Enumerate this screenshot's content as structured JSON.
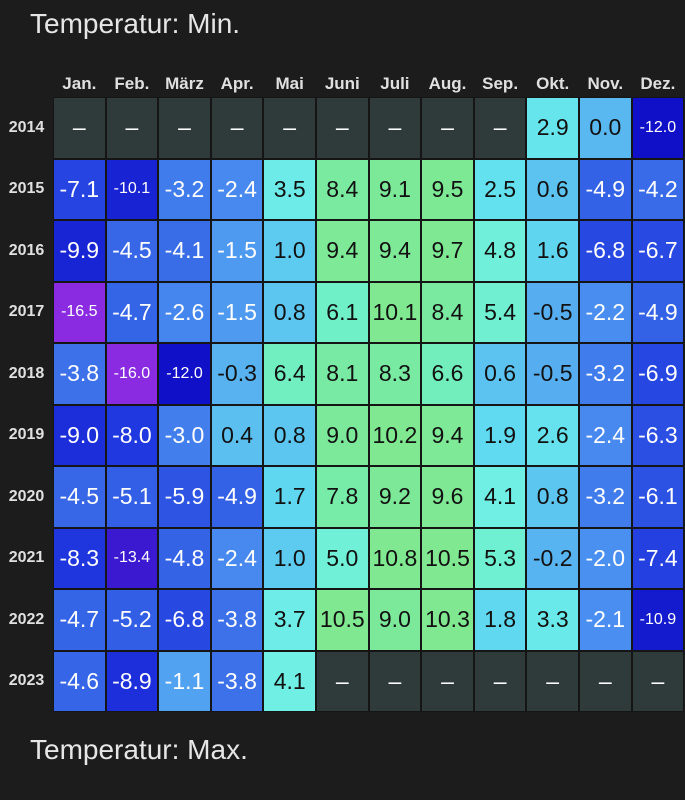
{
  "header": {
    "title": "Temperatur: Min."
  },
  "table": {
    "columns": [
      "Jan.",
      "Feb.",
      "März",
      "Apr.",
      "Mai",
      "Juni",
      "Juli",
      "Aug.",
      "Sep.",
      "Okt.",
      "Nov.",
      "Dez."
    ],
    "rows": [
      {
        "year": "2014",
        "cells": [
          "–",
          "–",
          "–",
          "–",
          "–",
          "–",
          "–",
          "–",
          "–",
          "2.9",
          "0.0",
          "-12.0"
        ]
      },
      {
        "year": "2015",
        "cells": [
          "-7.1",
          "-10.1",
          "-3.2",
          "-2.4",
          "3.5",
          "8.4",
          "9.1",
          "9.5",
          "2.5",
          "0.6",
          "-4.9",
          "-4.2"
        ]
      },
      {
        "year": "2016",
        "cells": [
          "-9.9",
          "-4.5",
          "-4.1",
          "-1.5",
          "1.0",
          "9.4",
          "9.4",
          "9.7",
          "4.8",
          "1.6",
          "-6.8",
          "-6.7"
        ]
      },
      {
        "year": "2017",
        "cells": [
          "-16.5",
          "-4.7",
          "-2.6",
          "-1.5",
          "0.8",
          "6.1",
          "10.1",
          "8.4",
          "5.4",
          "-0.5",
          "-2.2",
          "-4.9"
        ]
      },
      {
        "year": "2018",
        "cells": [
          "-3.8",
          "-16.0",
          "-12.0",
          "-0.3",
          "6.4",
          "8.1",
          "8.3",
          "6.6",
          "0.6",
          "-0.5",
          "-3.2",
          "-6.9"
        ]
      },
      {
        "year": "2019",
        "cells": [
          "-9.0",
          "-8.0",
          "-3.0",
          "0.4",
          "0.8",
          "9.0",
          "10.2",
          "9.4",
          "1.9",
          "2.6",
          "-2.4",
          "-6.3"
        ]
      },
      {
        "year": "2020",
        "cells": [
          "-4.5",
          "-5.1",
          "-5.9",
          "-4.9",
          "1.7",
          "7.8",
          "9.2",
          "9.6",
          "4.1",
          "0.8",
          "-3.2",
          "-6.1"
        ]
      },
      {
        "year": "2021",
        "cells": [
          "-8.3",
          "-13.4",
          "-4.8",
          "-2.4",
          "1.0",
          "5.0",
          "10.8",
          "10.5",
          "5.3",
          "-0.2",
          "-2.0",
          "-7.4"
        ]
      },
      {
        "year": "2022",
        "cells": [
          "-4.7",
          "-5.2",
          "-6.8",
          "-3.8",
          "3.7",
          "10.5",
          "9.0",
          "10.3",
          "1.8",
          "3.3",
          "-2.1",
          "-10.9"
        ]
      },
      {
        "year": "2023",
        "cells": [
          "-4.6",
          "-8.9",
          "-1.1",
          "-3.8",
          "4.1",
          "–",
          "–",
          "–",
          "–",
          "–",
          "–",
          "–"
        ]
      }
    ]
  },
  "footer": {
    "title": "Temperatur: Max."
  }
}
